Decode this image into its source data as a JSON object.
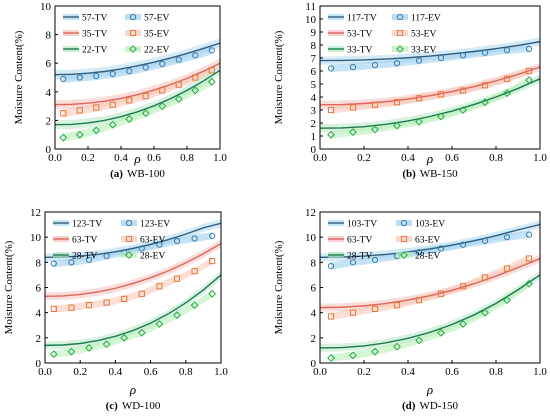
{
  "chart_data": [
    {
      "type": "line",
      "caption_letter": "(a)",
      "caption_text": "WB-100",
      "xlabel": "ρ",
      "ylabel": "Moisture Content(%)",
      "xlim": [
        0.0,
        1.0
      ],
      "ylim": [
        0,
        10
      ],
      "xticks": [
        "0.0",
        "0.2",
        "0.4",
        "0.6",
        "0.8",
        "1.0"
      ],
      "yticks": [
        "0",
        "2",
        "4",
        "6",
        "8",
        "10"
      ],
      "legend": "top-left",
      "series": [
        {
          "name": "57-TV",
          "kind": "tv",
          "color": "#2f5f7f",
          "band": "#9fd0ee",
          "x": [
            0,
            0.1,
            0.2,
            0.3,
            0.4,
            0.5,
            0.6,
            0.7,
            0.8,
            0.9,
            1.0
          ],
          "y": [
            5.2,
            5.22,
            5.3,
            5.42,
            5.6,
            5.82,
            6.07,
            6.36,
            6.68,
            7.03,
            7.4
          ]
        },
        {
          "name": "57-EV",
          "kind": "ev",
          "marker": "circle",
          "color": "#3a7aa8",
          "band": "#9fd0ee",
          "x": [
            0.05,
            0.15,
            0.25,
            0.35,
            0.45,
            0.55,
            0.65,
            0.75,
            0.85,
            0.95
          ],
          "y": [
            4.9,
            5.0,
            5.1,
            5.25,
            5.45,
            5.7,
            5.95,
            6.25,
            6.55,
            6.9
          ]
        },
        {
          "name": "35-TV",
          "kind": "tv",
          "color": "#e0645a",
          "band": "#f5b5b0",
          "x": [
            0,
            0.1,
            0.2,
            0.3,
            0.4,
            0.5,
            0.6,
            0.7,
            0.8,
            0.9,
            1.0
          ],
          "y": [
            3.1,
            3.12,
            3.2,
            3.34,
            3.54,
            3.8,
            4.12,
            4.5,
            4.94,
            5.44,
            6.0
          ]
        },
        {
          "name": "35-EV",
          "kind": "ev",
          "marker": "square",
          "color": "#e8763c",
          "band": "#f8c9b8",
          "x": [
            0.05,
            0.15,
            0.25,
            0.35,
            0.45,
            0.55,
            0.65,
            0.75,
            0.85,
            0.95
          ],
          "y": [
            2.5,
            2.7,
            2.9,
            3.1,
            3.4,
            3.7,
            4.1,
            4.5,
            5.0,
            5.5
          ]
        },
        {
          "name": "22-TV",
          "kind": "tv",
          "color": "#1d7a52",
          "band": "#a8e2b8",
          "x": [
            0,
            0.1,
            0.2,
            0.3,
            0.4,
            0.5,
            0.6,
            0.7,
            0.8,
            0.9,
            1.0
          ],
          "y": [
            1.7,
            1.72,
            1.82,
            2.0,
            2.26,
            2.6,
            3.02,
            3.52,
            4.1,
            4.76,
            5.5
          ]
        },
        {
          "name": "22-EV",
          "kind": "ev",
          "marker": "diamond",
          "color": "#2aa84a",
          "band": "#b8f0b8",
          "x": [
            0.05,
            0.15,
            0.25,
            0.35,
            0.45,
            0.55,
            0.65,
            0.75,
            0.85,
            0.95
          ],
          "y": [
            0.8,
            1.0,
            1.3,
            1.7,
            2.1,
            2.5,
            3.0,
            3.5,
            4.1,
            4.7
          ]
        }
      ]
    },
    {
      "type": "line",
      "caption_letter": "(b)",
      "caption_text": "WB-150",
      "xlabel": "ρ",
      "ylabel": "Moisture Content(%)",
      "xlim": [
        0.0,
        1.0
      ],
      "ylim": [
        0,
        11
      ],
      "xticks": [
        "0.0",
        "0.2",
        "0.4",
        "0.6",
        "0.8",
        "1.0"
      ],
      "yticks": [
        "0",
        "1",
        "2",
        "3",
        "4",
        "5",
        "6",
        "7",
        "8",
        "9",
        "10",
        "11"
      ],
      "legend": "top-left",
      "series": [
        {
          "name": "117-TV",
          "kind": "tv",
          "color": "#2f5f7f",
          "band": "#9fd0ee",
          "x": [
            0,
            0.1,
            0.2,
            0.3,
            0.4,
            0.5,
            0.6,
            0.7,
            0.8,
            0.9,
            1.0
          ],
          "y": [
            6.8,
            6.81,
            6.85,
            6.92,
            7.02,
            7.15,
            7.31,
            7.5,
            7.72,
            7.97,
            8.25
          ]
        },
        {
          "name": "117-EV",
          "kind": "ev",
          "marker": "circle",
          "color": "#3a7aa8",
          "band": "#9fd0ee",
          "x": [
            0.05,
            0.15,
            0.25,
            0.35,
            0.45,
            0.55,
            0.65,
            0.75,
            0.85,
            0.95
          ],
          "y": [
            6.2,
            6.3,
            6.45,
            6.6,
            6.8,
            7.0,
            7.2,
            7.4,
            7.6,
            7.7
          ]
        },
        {
          "name": "53-TV",
          "kind": "tv",
          "color": "#e0645a",
          "band": "#f5b5b0",
          "x": [
            0,
            0.1,
            0.2,
            0.3,
            0.4,
            0.5,
            0.6,
            0.7,
            0.8,
            0.9,
            1.0
          ],
          "y": [
            3.4,
            3.42,
            3.5,
            3.64,
            3.84,
            4.1,
            4.42,
            4.8,
            5.24,
            5.74,
            6.3
          ]
        },
        {
          "name": "53-EV",
          "kind": "ev",
          "marker": "square",
          "color": "#e8763c",
          "band": "#f8c9b8",
          "x": [
            0.05,
            0.15,
            0.25,
            0.35,
            0.45,
            0.55,
            0.65,
            0.75,
            0.85,
            0.95
          ],
          "y": [
            3.0,
            3.2,
            3.4,
            3.6,
            3.9,
            4.2,
            4.5,
            4.9,
            5.4,
            6.0
          ]
        },
        {
          "name": "33-TV",
          "kind": "tv",
          "color": "#1d7a52",
          "band": "#a8e2b8",
          "x": [
            0,
            0.1,
            0.2,
            0.3,
            0.4,
            0.5,
            0.6,
            0.7,
            0.8,
            0.9,
            1.0
          ],
          "y": [
            1.6,
            1.62,
            1.72,
            1.9,
            2.16,
            2.5,
            2.92,
            3.42,
            4.0,
            4.66,
            5.4
          ]
        },
        {
          "name": "33-EV",
          "kind": "ev",
          "marker": "diamond",
          "color": "#2aa84a",
          "band": "#b8f0b8",
          "x": [
            0.05,
            0.15,
            0.25,
            0.35,
            0.45,
            0.55,
            0.65,
            0.75,
            0.85,
            0.95
          ],
          "y": [
            1.1,
            1.3,
            1.5,
            1.8,
            2.1,
            2.5,
            3.0,
            3.6,
            4.3,
            5.3
          ]
        }
      ]
    },
    {
      "type": "line",
      "caption_letter": "(c)",
      "caption_text": "WD-100",
      "xlabel": "ρ",
      "ylabel": "Moisture Content(%)",
      "xlim": [
        0.0,
        1.0
      ],
      "ylim": [
        0,
        12
      ],
      "xticks": [
        "0.0",
        "0.2",
        "0.4",
        "0.6",
        "0.8",
        "1.0"
      ],
      "yticks": [
        "0",
        "2",
        "4",
        "6",
        "8",
        "10",
        "12"
      ],
      "legend": "top-left",
      "series": [
        {
          "name": "123-TV",
          "kind": "tv",
          "color": "#2f5f7f",
          "band": "#9fd0ee",
          "x": [
            0,
            0.1,
            0.2,
            0.3,
            0.4,
            0.5,
            0.6,
            0.7,
            0.8,
            0.9,
            1.0
          ],
          "y": [
            8.4,
            8.42,
            8.5,
            8.64,
            8.84,
            9.1,
            9.42,
            9.8,
            10.24,
            10.74,
            11.1
          ]
        },
        {
          "name": "123-EV",
          "kind": "ev",
          "marker": "circle",
          "color": "#3a7aa8",
          "band": "#9fd0ee",
          "x": [
            0.05,
            0.15,
            0.25,
            0.35,
            0.45,
            0.55,
            0.65,
            0.75,
            0.85,
            0.95
          ],
          "y": [
            7.9,
            8.0,
            8.2,
            8.5,
            8.8,
            9.1,
            9.4,
            9.7,
            9.9,
            10.1
          ]
        },
        {
          "name": "63-TV",
          "kind": "tv",
          "color": "#e0645a",
          "band": "#f5b5b0",
          "x": [
            0,
            0.1,
            0.2,
            0.3,
            0.4,
            0.5,
            0.6,
            0.7,
            0.8,
            0.9,
            1.0
          ],
          "y": [
            5.3,
            5.33,
            5.45,
            5.65,
            5.94,
            6.32,
            6.78,
            7.32,
            7.96,
            8.68,
            9.5
          ]
        },
        {
          "name": "63-EV",
          "kind": "ev",
          "marker": "square",
          "color": "#e8763c",
          "band": "#f8c9b8",
          "x": [
            0.05,
            0.15,
            0.25,
            0.35,
            0.45,
            0.55,
            0.65,
            0.75,
            0.85,
            0.95
          ],
          "y": [
            4.3,
            4.4,
            4.6,
            4.8,
            5.1,
            5.5,
            6.1,
            6.7,
            7.3,
            8.1
          ]
        },
        {
          "name": "28-TV",
          "kind": "tv",
          "color": "#1d7a52",
          "band": "#a8e2b8",
          "x": [
            0,
            0.1,
            0.2,
            0.3,
            0.4,
            0.5,
            0.6,
            0.7,
            0.8,
            0.9,
            1.0
          ],
          "y": [
            1.4,
            1.43,
            1.55,
            1.78,
            2.12,
            2.58,
            3.17,
            3.9,
            4.78,
            5.81,
            7.0
          ]
        },
        {
          "name": "28-EV",
          "kind": "ev",
          "marker": "diamond",
          "color": "#2aa84a",
          "band": "#b8f0b8",
          "x": [
            0.05,
            0.15,
            0.25,
            0.35,
            0.45,
            0.55,
            0.65,
            0.75,
            0.85,
            0.95
          ],
          "y": [
            0.7,
            0.9,
            1.2,
            1.5,
            2.0,
            2.4,
            3.1,
            3.8,
            4.6,
            5.5
          ]
        }
      ]
    },
    {
      "type": "line",
      "caption_letter": "(d)",
      "caption_text": "WD-150",
      "xlabel": "ρ",
      "ylabel": "Moisture Content(%)",
      "xlim": [
        0.0,
        1.0
      ],
      "ylim": [
        0,
        12
      ],
      "xticks": [
        "0.0",
        "0.2",
        "0.4",
        "0.6",
        "0.8",
        "1.0"
      ],
      "yticks": [
        "0",
        "2",
        "4",
        "6",
        "8",
        "10",
        "12"
      ],
      "legend": "top-left",
      "series": [
        {
          "name": "103-TV",
          "kind": "tv",
          "color": "#2f5f7f",
          "band": "#9fd0ee",
          "x": [
            0,
            0.1,
            0.2,
            0.3,
            0.4,
            0.5,
            0.6,
            0.7,
            0.8,
            0.9,
            1.0
          ],
          "y": [
            8.4,
            8.42,
            8.5,
            8.63,
            8.82,
            9.06,
            9.36,
            9.71,
            10.12,
            10.58,
            11.0
          ]
        },
        {
          "name": "103-EV",
          "kind": "ev",
          "marker": "circle",
          "color": "#3a7aa8",
          "band": "#9fd0ee",
          "x": [
            0.05,
            0.15,
            0.25,
            0.35,
            0.45,
            0.55,
            0.65,
            0.75,
            0.85,
            0.95
          ],
          "y": [
            7.7,
            8.0,
            8.2,
            8.5,
            8.8,
            9.1,
            9.4,
            9.7,
            10.0,
            10.2
          ]
        },
        {
          "name": "63-TV",
          "kind": "tv",
          "color": "#e0645a",
          "band": "#f5b5b0",
          "x": [
            0,
            0.1,
            0.2,
            0.3,
            0.4,
            0.5,
            0.6,
            0.7,
            0.8,
            0.9,
            1.0
          ],
          "y": [
            4.4,
            4.43,
            4.54,
            4.73,
            5.0,
            5.35,
            5.78,
            6.3,
            6.9,
            7.58,
            8.3
          ]
        },
        {
          "name": "63-EV",
          "kind": "ev",
          "marker": "square",
          "color": "#e8763c",
          "band": "#f8c9b8",
          "x": [
            0.05,
            0.15,
            0.25,
            0.35,
            0.45,
            0.55,
            0.65,
            0.75,
            0.85,
            0.95
          ],
          "y": [
            3.7,
            4.0,
            4.3,
            4.6,
            5.0,
            5.5,
            6.1,
            6.8,
            7.5,
            8.3
          ]
        },
        {
          "name": "28-TV",
          "kind": "tv",
          "color": "#1d7a52",
          "band": "#a8e2b8",
          "x": [
            0,
            0.1,
            0.2,
            0.3,
            0.4,
            0.5,
            0.6,
            0.7,
            0.8,
            0.9,
            1.0
          ],
          "y": [
            1.2,
            1.23,
            1.36,
            1.6,
            1.96,
            2.44,
            3.06,
            3.82,
            4.74,
            5.82,
            7.0
          ]
        },
        {
          "name": "28-EV",
          "kind": "ev",
          "marker": "diamond",
          "color": "#2aa84a",
          "band": "#b8f0b8",
          "x": [
            0.05,
            0.15,
            0.25,
            0.35,
            0.45,
            0.55,
            0.65,
            0.75,
            0.85,
            0.95
          ],
          "y": [
            0.4,
            0.6,
            0.9,
            1.3,
            1.8,
            2.4,
            3.1,
            4.0,
            5.0,
            6.3
          ]
        }
      ]
    }
  ]
}
